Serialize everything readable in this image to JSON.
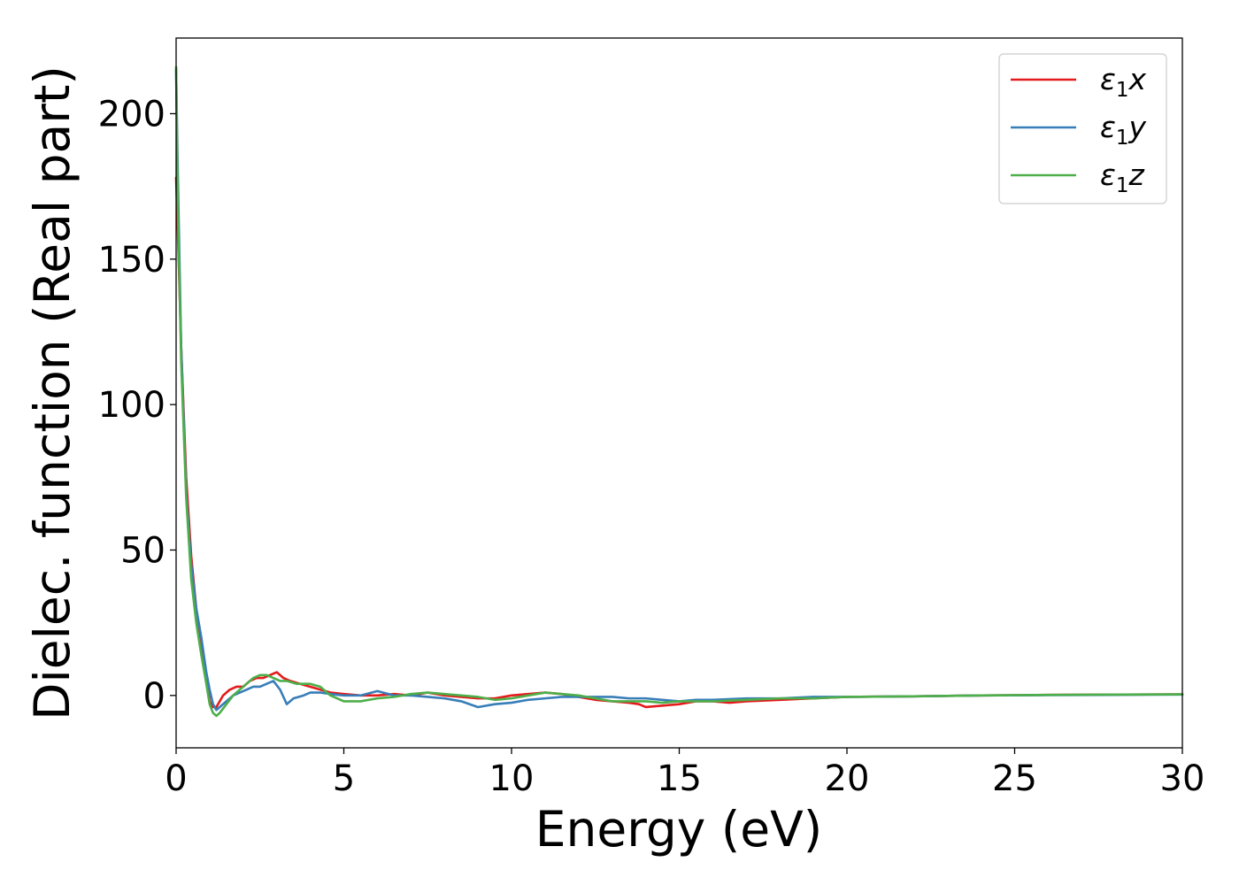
{
  "chart_data": {
    "type": "line",
    "title": "",
    "xlabel": "Energy (eV)",
    "ylabel": "Dielec. function (Real part)",
    "xlim": [
      0,
      30
    ],
    "ylim": [
      -18,
      226
    ],
    "xticks": [
      0,
      5,
      10,
      15,
      20,
      25,
      30
    ],
    "xtick_labels": [
      "0",
      "5",
      "10",
      "15",
      "20",
      "25",
      "30"
    ],
    "yticks": [
      0,
      50,
      100,
      150,
      200
    ],
    "ytick_labels": [
      "0",
      "50",
      "100",
      "150",
      "200"
    ],
    "grid": false,
    "legend_position": "top-right",
    "series": [
      {
        "name": "ε1x",
        "legend": {
          "base": "ε",
          "sub": "1",
          "suffix": "x"
        },
        "color": "#e41a1c",
        "x": [
          0,
          0.05,
          0.15,
          0.3,
          0.45,
          0.6,
          0.75,
          0.9,
          1.0,
          1.1,
          1.2,
          1.4,
          1.6,
          1.8,
          2.0,
          2.2,
          2.4,
          2.6,
          2.8,
          3.0,
          3.2,
          3.4,
          3.7,
          4.0,
          4.3,
          4.6,
          5.0,
          5.5,
          6.0,
          6.5,
          7.0,
          7.5,
          8.0,
          8.5,
          9.0,
          9.5,
          10.0,
          10.5,
          11.0,
          11.5,
          12.0,
          12.5,
          13.0,
          13.5,
          13.8,
          14.0,
          14.5,
          15.0,
          15.5,
          16.0,
          16.5,
          17.0,
          18.0,
          19.0,
          20.0,
          22.0,
          24.0,
          26.0,
          28.0,
          30.0
        ],
        "values": [
          178,
          160,
          120,
          75,
          48,
          30,
          18,
          6,
          -2,
          -4,
          -4,
          0,
          2,
          3,
          3,
          5,
          6,
          6,
          7,
          8,
          6,
          5,
          4,
          3,
          2,
          1,
          0.5,
          0,
          0,
          0.5,
          0,
          1,
          0,
          -0.5,
          -1,
          -1,
          0,
          0.5,
          1,
          0.5,
          -0.5,
          -1.5,
          -2,
          -2.5,
          -3,
          -4,
          -3.5,
          -3,
          -2,
          -2,
          -2.5,
          -2,
          -1.5,
          -1,
          -0.5,
          -0.3,
          0,
          0.2,
          0.3,
          0.4
        ]
      },
      {
        "name": "ε1y",
        "legend": {
          "base": "ε",
          "sub": "1",
          "suffix": "y"
        },
        "color": "#377eb8",
        "x": [
          0,
          0.05,
          0.15,
          0.3,
          0.45,
          0.6,
          0.75,
          0.9,
          1.0,
          1.1,
          1.2,
          1.3,
          1.5,
          1.7,
          1.9,
          2.1,
          2.3,
          2.5,
          2.7,
          2.9,
          3.1,
          3.3,
          3.5,
          3.8,
          4.0,
          4.3,
          4.6,
          5.0,
          5.5,
          6.0,
          6.5,
          7.0,
          7.5,
          8.0,
          8.5,
          9.0,
          9.5,
          10.0,
          10.5,
          11.0,
          11.5,
          12.0,
          12.5,
          13.0,
          13.5,
          14.0,
          14.5,
          15.0,
          15.5,
          16.0,
          17.0,
          18.0,
          19.0,
          20.0,
          22.0,
          24.0,
          26.0,
          28.0,
          30.0
        ],
        "values": [
          215,
          180,
          120,
          70,
          45,
          30,
          20,
          8,
          2,
          -3,
          -5,
          -4,
          -2,
          0,
          1,
          2,
          3,
          3,
          4,
          5,
          2,
          -3,
          -1,
          0,
          1,
          1,
          0.5,
          0,
          0,
          1.5,
          0,
          0,
          -0.5,
          -1,
          -2,
          -4,
          -3,
          -2.5,
          -1.5,
          -1,
          -0.5,
          -0.5,
          -0.5,
          -0.5,
          -1,
          -1,
          -1.5,
          -2,
          -1.5,
          -1.5,
          -1,
          -1,
          -0.5,
          -0.5,
          -0.3,
          0,
          0.1,
          0.2,
          0.3
        ]
      },
      {
        "name": "ε1z",
        "legend": {
          "base": "ε",
          "sub": "1",
          "suffix": "z"
        },
        "color": "#4daf4a",
        "x": [
          0,
          0.05,
          0.15,
          0.3,
          0.45,
          0.6,
          0.75,
          0.9,
          1.0,
          1.1,
          1.2,
          1.3,
          1.5,
          1.7,
          1.9,
          2.1,
          2.3,
          2.5,
          2.7,
          2.9,
          3.1,
          3.3,
          3.6,
          4.0,
          4.3,
          4.6,
          5.0,
          5.5,
          6.0,
          6.5,
          7.0,
          7.5,
          8.0,
          8.5,
          9.0,
          9.5,
          10.0,
          10.5,
          11.0,
          11.5,
          12.0,
          12.5,
          13.0,
          13.5,
          14.0,
          14.5,
          15.0,
          16.0,
          17.0,
          18.0,
          19.0,
          20.0,
          22.0,
          24.0,
          26.0,
          28.0,
          30.0
        ],
        "values": [
          216,
          170,
          115,
          68,
          40,
          25,
          14,
          4,
          -3,
          -6,
          -7,
          -6,
          -3,
          0,
          2,
          4,
          6,
          7,
          7,
          6,
          5,
          5,
          4,
          4,
          3,
          0,
          -2,
          -2,
          -1,
          -0.5,
          0.5,
          1,
          0.5,
          0,
          -0.5,
          -1.5,
          -1,
          0,
          1,
          0.5,
          0,
          -1,
          -2,
          -2,
          -2,
          -2.5,
          -2,
          -2,
          -1.5,
          -1,
          -1,
          -0.5,
          -0.3,
          0,
          0.2,
          0.3,
          0.4
        ]
      }
    ]
  }
}
